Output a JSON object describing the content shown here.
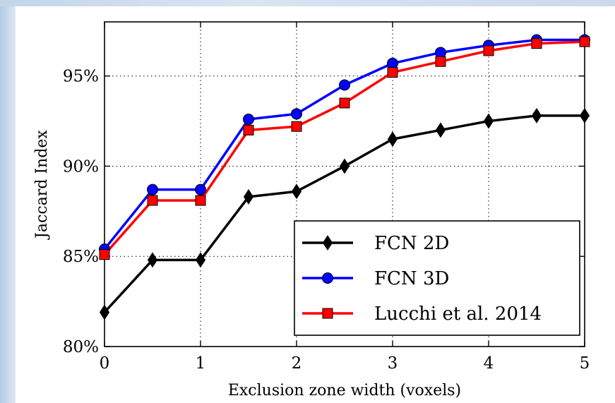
{
  "chart_data": {
    "type": "line",
    "title": "",
    "xlabel": "Exclusion zone width (voxels)",
    "ylabel": "Jaccard Index",
    "xlim": [
      0,
      5
    ],
    "ylim": [
      80,
      98
    ],
    "x_ticks": [
      0,
      1,
      2,
      3,
      4,
      5
    ],
    "x_tick_labels": [
      "0",
      "1",
      "2",
      "3",
      "4",
      "5"
    ],
    "y_ticks": [
      80,
      85,
      90,
      95
    ],
    "y_tick_labels": [
      "80%",
      "85%",
      "90%",
      "95%"
    ],
    "grid": true,
    "legend_position": "lower-right",
    "x": [
      0,
      0.5,
      1,
      1.5,
      2,
      2.5,
      3,
      3.5,
      4,
      4.5,
      5
    ],
    "series": [
      {
        "name": "FCN 2D",
        "color": "#000000",
        "marker": "diamond",
        "values": [
          81.9,
          84.8,
          84.8,
          88.3,
          88.6,
          90.0,
          91.5,
          92.0,
          92.5,
          92.8,
          92.8
        ]
      },
      {
        "name": "FCN 3D",
        "color": "#0000ff",
        "marker": "circle",
        "values": [
          85.4,
          88.7,
          88.7,
          92.6,
          92.9,
          94.5,
          95.7,
          96.3,
          96.7,
          97.0,
          97.0
        ]
      },
      {
        "name": "Lucchi et al. 2014",
        "color": "#ff0000",
        "marker": "square",
        "values": [
          85.1,
          88.1,
          88.1,
          92.0,
          92.2,
          93.5,
          95.2,
          95.8,
          96.4,
          96.8,
          96.9
        ]
      }
    ]
  }
}
